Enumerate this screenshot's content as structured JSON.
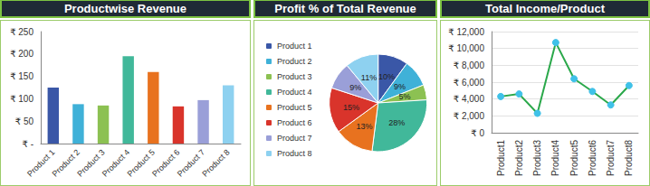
{
  "chart_data": [
    {
      "type": "bar",
      "title": "Productwise Revenue",
      "categories": [
        "Product 1",
        "Product 2",
        "Product 3",
        "Product 4",
        "Product 5",
        "Product 6",
        "Product 7",
        "Product 8"
      ],
      "values": [
        125,
        88,
        85,
        195,
        160,
        83,
        97,
        130
      ],
      "colors": [
        "#3a57a7",
        "#3fb1d8",
        "#8cc152",
        "#41b89a",
        "#e8721f",
        "#d9342b",
        "#9a9fd8",
        "#8ed1f0"
      ],
      "ylim": [
        0,
        250
      ],
      "yticks": [
        {
          "value": 0,
          "label": "₹ -"
        },
        {
          "value": 50,
          "label": "₹ 50"
        },
        {
          "value": 100,
          "label": "₹ 100"
        },
        {
          "value": 150,
          "label": "₹ 150"
        },
        {
          "value": 200,
          "label": "₹ 200"
        },
        {
          "value": 250,
          "label": "₹ 250"
        }
      ],
      "grid": false
    },
    {
      "type": "pie",
      "title": "Profit % of Total Revenue",
      "categories": [
        "Product 1",
        "Product 2",
        "Product 3",
        "Product 4",
        "Product 5",
        "Product 6",
        "Product 7",
        "Product 8"
      ],
      "values": [
        10,
        9,
        5,
        28,
        13,
        15,
        9,
        11
      ],
      "value_labels": [
        "10%",
        "9%",
        "5%",
        "28%",
        "13%",
        "15%",
        "9%",
        "11%"
      ],
      "colors": [
        "#3a57a7",
        "#3fb1d8",
        "#8cc152",
        "#41b89a",
        "#e8721f",
        "#d9342b",
        "#9a9fd8",
        "#8ed1f0"
      ],
      "data_labels": true,
      "legend": "left"
    },
    {
      "type": "line",
      "title": "Total Income/Product",
      "categories": [
        "Product1",
        "Product2",
        "Product3",
        "Product4",
        "Product5",
        "Product6",
        "Product7",
        "Product8"
      ],
      "values": [
        4300,
        4600,
        2300,
        10700,
        6400,
        4900,
        3300,
        5600
      ],
      "color": "#2aa84a",
      "marker": "circle",
      "ylim": [
        0,
        12000
      ],
      "yticks": [
        {
          "value": 0,
          "label": "₹ 0"
        },
        {
          "value": 2000,
          "label": "₹ 2,000"
        },
        {
          "value": 4000,
          "label": "₹ 4,000"
        },
        {
          "value": 6000,
          "label": "₹ 6,000"
        },
        {
          "value": 8000,
          "label": "₹ 8,000"
        },
        {
          "value": 10000,
          "label": "₹ 10,000"
        },
        {
          "value": 12000,
          "label": "₹ 12,000"
        }
      ],
      "grid": true
    }
  ]
}
